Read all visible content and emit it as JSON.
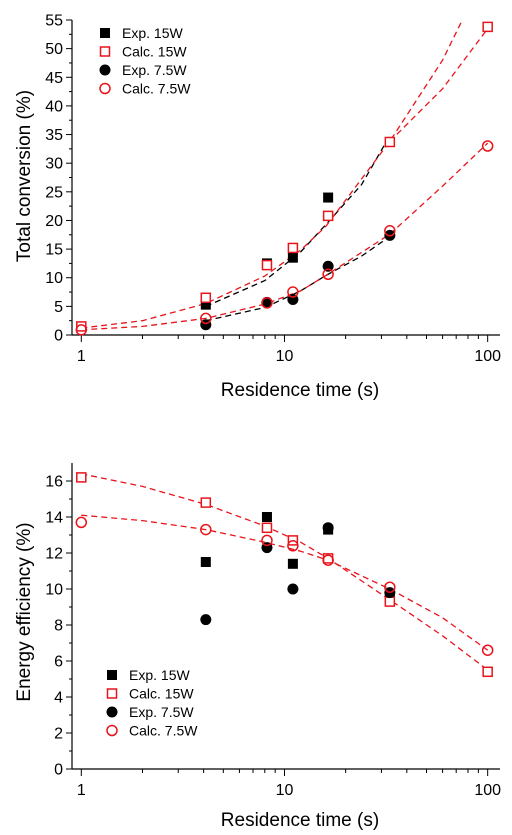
{
  "colors": {
    "exp": "#000000",
    "calc": "#e8141b"
  },
  "chart_data": [
    {
      "type": "scatter",
      "xlabel": "Residence time (s)",
      "ylabel": "Total conversion (%)",
      "xscale": "log",
      "xlim": [
        0.9,
        115
      ],
      "ylim": [
        0,
        55
      ],
      "xticks": [
        1,
        10,
        100
      ],
      "yticks": [
        0,
        5,
        10,
        15,
        20,
        25,
        30,
        35,
        40,
        45,
        50,
        55
      ],
      "legend_position": "top-left",
      "series": [
        {
          "name": "Exp. 15W",
          "marker": "filled-square",
          "color": "#000000",
          "points": [
            [
              4.1,
              5.3
            ],
            [
              8.2,
              12.5
            ],
            [
              11,
              13.5
            ],
            [
              16.4,
              24
            ]
          ]
        },
        {
          "name": "Calc. 15W",
          "marker": "open-square",
          "color": "#e8141b",
          "points": [
            [
              1,
              1.5
            ],
            [
              4.1,
              6.5
            ],
            [
              8.2,
              12.2
            ],
            [
              11,
              15.2
            ],
            [
              16.4,
              20.8
            ],
            [
              33,
              33.7
            ],
            [
              100,
              53.8
            ]
          ]
        },
        {
          "name": "Exp. 7.5W",
          "marker": "filled-circle",
          "color": "#000000",
          "points": [
            [
              4.1,
              1.8
            ],
            [
              8.2,
              5.7
            ],
            [
              11,
              6.2
            ],
            [
              16.4,
              12
            ],
            [
              33,
              17.4
            ]
          ]
        },
        {
          "name": "Calc. 7.5W",
          "marker": "open-circle",
          "color": "#e8141b",
          "points": [
            [
              1,
              0.9
            ],
            [
              4.1,
              2.9
            ],
            [
              8.2,
              5.6
            ],
            [
              11,
              7.5
            ],
            [
              16.4,
              10.6
            ],
            [
              33,
              18.2
            ],
            [
              100,
              33
            ]
          ]
        }
      ],
      "fit_lines": [
        {
          "color": "#000000",
          "points": [
            [
              4.1,
              5.0
            ],
            [
              8,
              9.5
            ],
            [
              12,
              14.5
            ],
            [
              16,
              19.3
            ],
            [
              24,
              26.3
            ],
            [
              33,
              34.8
            ]
          ]
        },
        {
          "color": "#e8141b",
          "points": [
            [
              1,
              1.2
            ],
            [
              2,
              2.5
            ],
            [
              4.1,
              5.5
            ],
            [
              8,
              10.3
            ],
            [
              12,
              14.8
            ],
            [
              16,
              19.0
            ],
            [
              33,
              33.8
            ],
            [
              60,
              48
            ],
            [
              75,
              55
            ]
          ]
        },
        {
          "color": "#000000",
          "points": [
            [
              4.1,
              2.5
            ],
            [
              8,
              4.8
            ],
            [
              12,
              7.7
            ],
            [
              16,
              10.4
            ],
            [
              24,
              13.8
            ],
            [
              33,
              17.2
            ]
          ]
        },
        {
          "color": "#e8141b",
          "points": [
            [
              1,
              0.9
            ],
            [
              2,
              1.5
            ],
            [
              4.1,
              2.9
            ],
            [
              8,
              5.4
            ],
            [
              12,
              7.7
            ],
            [
              16,
              10.4
            ],
            [
              33,
              17.6
            ],
            [
              60,
              26
            ],
            [
              100,
              33.5
            ]
          ]
        },
        {
          "color": "#e8141b",
          "points": [
            [
              33,
              33.8
            ],
            [
              60,
              43
            ],
            [
              100,
              53.5
            ]
          ]
        }
      ]
    },
    {
      "type": "scatter",
      "xlabel": "Residence time (s)",
      "ylabel": "Energy efficiency (%)",
      "xscale": "log",
      "xlim": [
        0.9,
        115
      ],
      "ylim": [
        0,
        17
      ],
      "xticks": [
        1,
        10,
        100
      ],
      "yticks": [
        0,
        2,
        4,
        6,
        8,
        10,
        12,
        14,
        16
      ],
      "legend_position": "bottom-left",
      "series": [
        {
          "name": "Exp. 15W",
          "marker": "filled-square",
          "color": "#000000",
          "points": [
            [
              4.1,
              11.5
            ],
            [
              8.2,
              14.0
            ],
            [
              11,
              11.4
            ],
            [
              16.4,
              13.3
            ],
            [
              33,
              9.5
            ]
          ]
        },
        {
          "name": "Calc. 15W",
          "marker": "open-square",
          "color": "#e8141b",
          "points": [
            [
              1,
              16.2
            ],
            [
              4.1,
              14.8
            ],
            [
              8.2,
              13.4
            ],
            [
              11,
              12.7
            ],
            [
              16.4,
              11.7
            ],
            [
              33,
              9.3
            ],
            [
              100,
              5.4
            ]
          ]
        },
        {
          "name": "Exp. 7.5W",
          "marker": "filled-circle",
          "color": "#000000",
          "points": [
            [
              4.1,
              8.3
            ],
            [
              8.2,
              12.3
            ],
            [
              11,
              10.0
            ],
            [
              16.4,
              13.4
            ],
            [
              33,
              9.8
            ]
          ]
        },
        {
          "name": "Calc. 7.5W",
          "marker": "open-circle",
          "color": "#e8141b",
          "points": [
            [
              1,
              13.7
            ],
            [
              4.1,
              13.3
            ],
            [
              8.2,
              12.7
            ],
            [
              11,
              12.4
            ],
            [
              16.4,
              11.6
            ],
            [
              33,
              10.1
            ],
            [
              100,
              6.6
            ]
          ]
        }
      ],
      "fit_lines": [
        {
          "color": "#e8141b",
          "points": [
            [
              1,
              16.4
            ],
            [
              2,
              15.7
            ],
            [
              4.1,
              14.7
            ],
            [
              8,
              13.5
            ],
            [
              12,
              12.6
            ],
            [
              16.4,
              11.7
            ],
            [
              33,
              9.4
            ],
            [
              60,
              7.4
            ],
            [
              100,
              5.5
            ]
          ]
        },
        {
          "color": "#e8141b",
          "points": [
            [
              1,
              14.1
            ],
            [
              2,
              13.8
            ],
            [
              4.1,
              13.3
            ],
            [
              8,
              12.6
            ],
            [
              12,
              12.1
            ],
            [
              16.4,
              11.6
            ],
            [
              33,
              10.0
            ],
            [
              60,
              8.4
            ],
            [
              100,
              6.6
            ]
          ]
        }
      ]
    }
  ]
}
